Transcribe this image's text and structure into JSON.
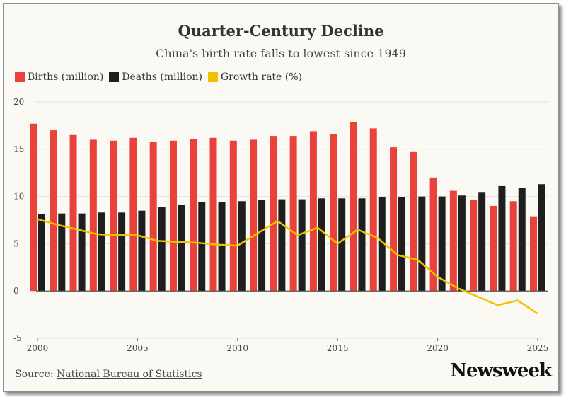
{
  "title": "Quarter-Century Decline",
  "subtitle": "China's birth rate falls to lowest since 1949",
  "legend": [
    {
      "label": "Births (million)",
      "color": "#e8423a"
    },
    {
      "label": "Deaths (million)",
      "color": "#1e1e1e"
    },
    {
      "label": "Growth rate (%)",
      "color": "#f2c200"
    }
  ],
  "source": {
    "prefix": "Source:",
    "link": "National Bureau of Statistics"
  },
  "logo": "Newsweek",
  "chart_data": {
    "type": "bar",
    "x": [
      2000,
      2001,
      2002,
      2003,
      2004,
      2005,
      2006,
      2007,
      2008,
      2009,
      2010,
      2011,
      2012,
      2013,
      2014,
      2015,
      2016,
      2017,
      2018,
      2019,
      2020,
      2021,
      2022,
      2023,
      2024,
      2025
    ],
    "x_ticks": [
      "2000",
      "2005",
      "2010",
      "2015",
      "2020",
      "2025"
    ],
    "y_ticks": [
      "20",
      "15",
      "10",
      "5",
      "0",
      "-5"
    ],
    "ylim": [
      -5,
      20
    ],
    "grid": true,
    "legend_position": "top-left",
    "series": [
      {
        "name": "Births (million)",
        "type": "bar",
        "color": "#e8423a",
        "values": [
          17.7,
          17.0,
          16.5,
          16.0,
          15.9,
          16.2,
          15.8,
          15.9,
          16.1,
          16.2,
          15.9,
          16.0,
          16.4,
          16.4,
          16.9,
          16.6,
          17.9,
          17.2,
          15.2,
          14.7,
          12.0,
          10.6,
          9.6,
          9.0,
          9.5,
          7.9
        ]
      },
      {
        "name": "Deaths (million)",
        "type": "bar",
        "color": "#1e1e1e",
        "values": [
          8.1,
          8.2,
          8.2,
          8.3,
          8.3,
          8.5,
          8.9,
          9.1,
          9.4,
          9.4,
          9.5,
          9.6,
          9.7,
          9.7,
          9.8,
          9.8,
          9.8,
          9.9,
          9.9,
          10.0,
          10.0,
          10.1,
          10.4,
          11.1,
          10.9,
          11.3
        ]
      },
      {
        "name": "Growth rate (%)",
        "type": "line",
        "color": "#f2c200",
        "values": [
          7.6,
          7.0,
          6.5,
          6.0,
          5.9,
          5.9,
          5.3,
          5.2,
          5.1,
          4.9,
          4.8,
          6.1,
          7.4,
          5.9,
          6.7,
          5.0,
          6.5,
          5.6,
          3.8,
          3.3,
          1.5,
          0.3,
          -0.6,
          -1.5,
          -1.0,
          -2.4
        ]
      }
    ]
  }
}
